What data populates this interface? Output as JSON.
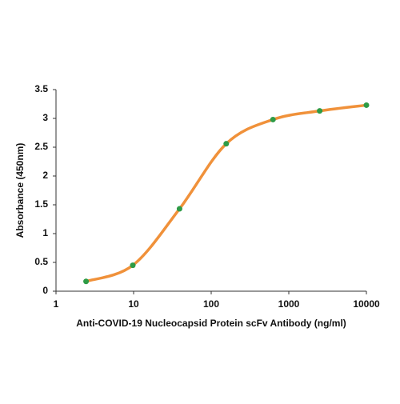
{
  "chart_data": {
    "type": "line",
    "x_label": "Anti-COVID-19  Nucleocapsid Protein scFv Antibody (ng/ml)",
    "y_label": "Absorbance (450nm)",
    "x": [
      2.44,
      9.77,
      39.06,
      156.25,
      625,
      2500,
      10000
    ],
    "series": [
      {
        "color": "#f0913a",
        "marker_color": "#2e9b46",
        "values": [
          0.17,
          0.45,
          1.43,
          2.56,
          2.98,
          3.13,
          3.23
        ]
      }
    ],
    "x_log": true,
    "smooth": true,
    "xlim": [
      1,
      10000
    ],
    "xticks": [
      1,
      10,
      100,
      1000,
      10000
    ],
    "ylim": [
      0,
      3.5
    ],
    "yticks": [
      0,
      0.5,
      1,
      1.5,
      2,
      2.5,
      3,
      3.5
    ],
    "grid": false
  }
}
